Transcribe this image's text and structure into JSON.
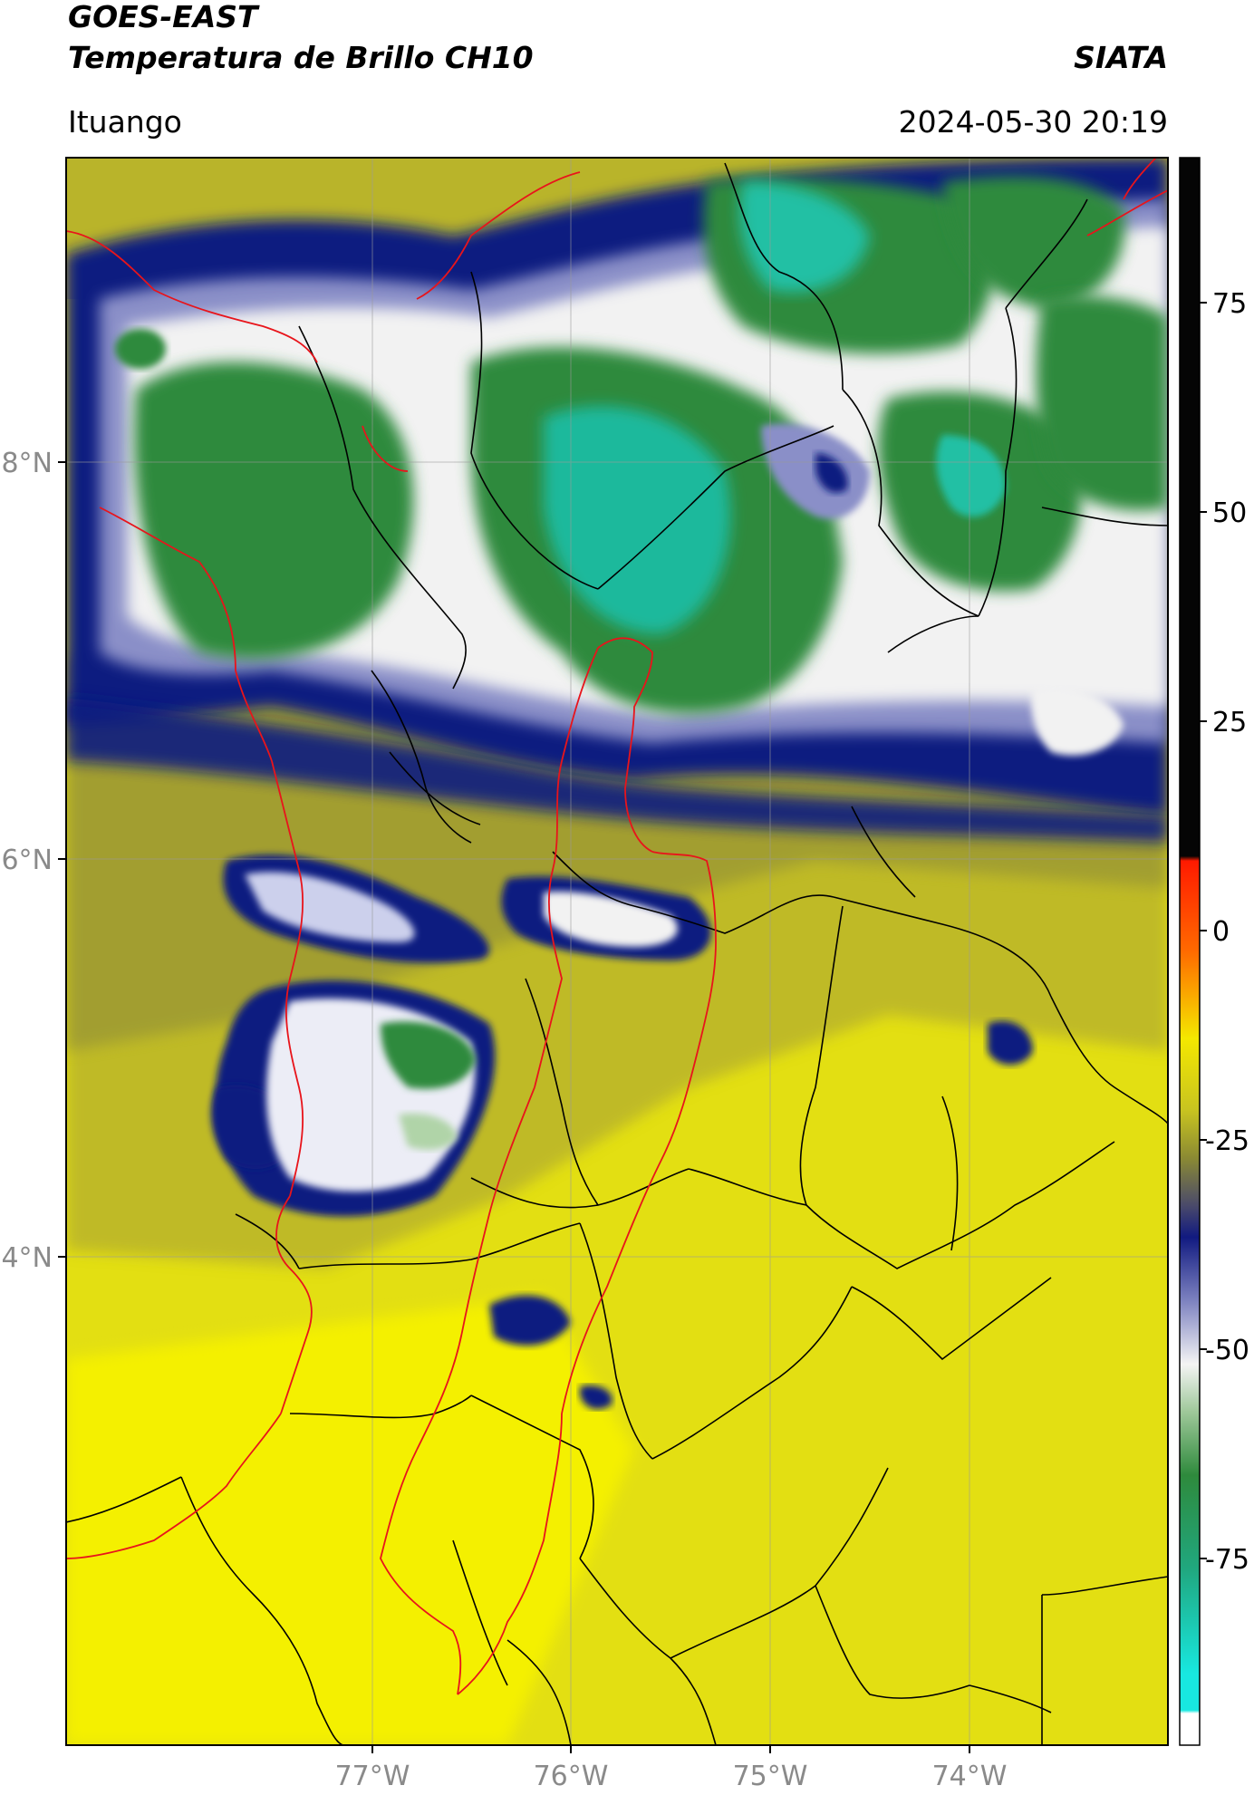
{
  "header": {
    "title": "GOES-EAST",
    "subtitle": "Temperatura de Brillo CH10",
    "organization": "SIATA",
    "region": "Ituango",
    "datetime": "2024-05-30 20:19"
  },
  "map": {
    "lat_ticks": [
      "8°N",
      "6°N",
      "4°N"
    ],
    "lon_ticks": [
      "77°W",
      "76°W",
      "75°W",
      "74°W"
    ],
    "border_colors": {
      "department": "#000000",
      "basin": "#e8141b"
    }
  },
  "colorbar": {
    "ticks": [
      "75",
      "50",
      "25",
      "0",
      "-25",
      "-50",
      "-75"
    ],
    "colors": {
      "warm_black": "#050505",
      "red": "#ff1a00",
      "orange": "#ff9a00",
      "yellow": "#f4f000",
      "olive": "#8b8a33",
      "navy": "#111a80",
      "white": "#f4f4f4",
      "green": "#2e8a3c",
      "teal": "#20c8a8",
      "cyan": "#18e8e0"
    }
  }
}
